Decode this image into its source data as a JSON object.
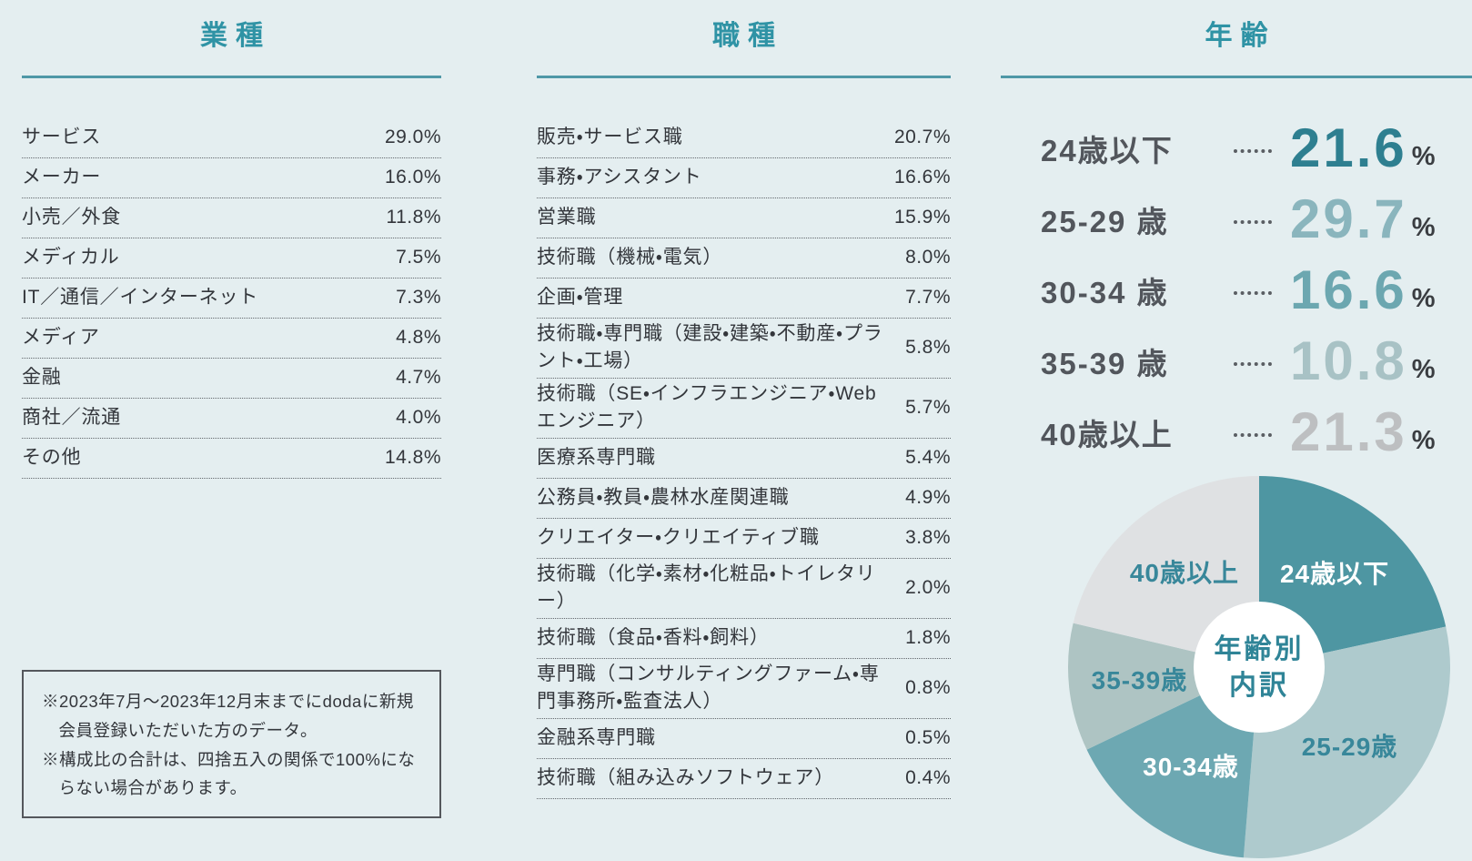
{
  "page": {
    "background": "#e4eef0",
    "accent_teal": "#2f93a5",
    "rule_color": "#4f98a7",
    "text_color": "#33363b"
  },
  "chart_data": [
    {
      "type": "table",
      "title": "業種",
      "value_unit": "%",
      "rows": [
        [
          "サービス",
          29.0
        ],
        [
          "メーカー",
          16.0
        ],
        [
          "小売／外食",
          11.8
        ],
        [
          "メディカル",
          7.5
        ],
        [
          "IT／通信／インターネット",
          7.3
        ],
        [
          "メディア",
          4.8
        ],
        [
          "金融",
          4.7
        ],
        [
          "商社／流通",
          4.0
        ],
        [
          "その他",
          14.8
        ]
      ]
    },
    {
      "type": "table",
      "title": "職種",
      "value_unit": "%",
      "rows": [
        [
          "販売・サービス職",
          20.7
        ],
        [
          "事務・アシスタント",
          16.6
        ],
        [
          "営業職",
          15.9
        ],
        [
          "技術職（機械・電気）",
          8.0
        ],
        [
          "企画・管理",
          7.7
        ],
        [
          "技術職・専門職（建設・建築・不動産・プラント・工場）",
          5.8
        ],
        [
          "技術職（SE・インフラエンジニア・Webエンジニア）",
          5.7
        ],
        [
          "医療系専門職",
          5.4
        ],
        [
          "公務員・教員・農林水産関連職",
          4.9
        ],
        [
          "クリエイター・クリエイティブ職",
          3.8
        ],
        [
          "技術職（化学・素材・化粧品・トイレタリー）",
          2.0
        ],
        [
          "技術職（食品・香料・飼料）",
          1.8
        ],
        [
          "専門職（コンサルティングファーム・専門事務所・監査法人）",
          0.8
        ],
        [
          "金融系専門職",
          0.5
        ],
        [
          "技術職（組み込みソフトウェア）",
          0.4
        ]
      ]
    },
    {
      "type": "pie",
      "title": "年齢",
      "donut": true,
      "direction": "clockwise",
      "start_angle_deg": 0,
      "categories": [
        "24歳以下",
        "25-29歳",
        "30-34歳",
        "35-39歳",
        "40歳以上"
      ],
      "values": [
        21.6,
        29.7,
        16.6,
        10.8,
        21.3
      ],
      "colors": [
        "#4e96a2",
        "#aecacd",
        "#6da8b2",
        "#aec4c3",
        "#dfe1e3"
      ],
      "label_colors": [
        "#ffffff",
        "#38879a",
        "#ffffff",
        "#38879a",
        "#38879a"
      ],
      "center_lines": [
        "年齢別",
        "内訳"
      ],
      "center_label_color": "#2f8497"
    }
  ],
  "age": {
    "title": "年齢",
    "unit": "%",
    "rows": [
      {
        "label": "24歳以下",
        "value": 21.6,
        "color": "#2e7f90"
      },
      {
        "label": "25-29 歳",
        "value": 29.7,
        "color": "#8ab5bd"
      },
      {
        "label": "30-34 歳",
        "value": 16.6,
        "color": "#6ca7b0"
      },
      {
        "label": "35-39 歳",
        "value": 10.8,
        "color": "#a8c2c5"
      },
      {
        "label": "40歳以上",
        "value": 21.3,
        "color": "#bdbfc1"
      }
    ]
  },
  "footnote": {
    "notes": [
      "※2023年7月〜2023年12月末までにdodaに新規会員登録いただいた方のデータ。",
      "※構成比の合計は、四捨五入の関係で100%にならない場合があります。"
    ]
  }
}
